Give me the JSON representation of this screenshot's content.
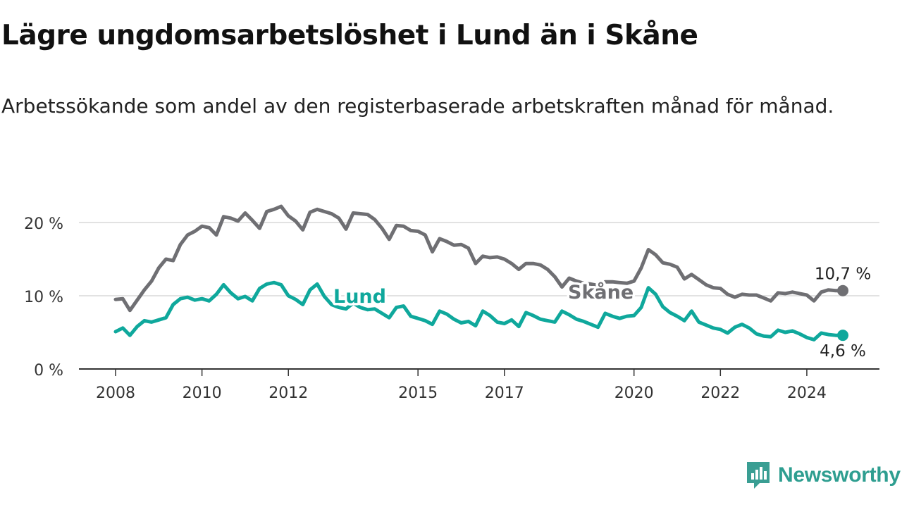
{
  "header": {
    "title": "Lägre ungdomsarbetslöshet i Lund än i Skåne",
    "subtitle": "Arbetssökande som andel av den registerbaserade arbetskraften månad för månad."
  },
  "brand": {
    "name": "Newsworthy",
    "icon": "newsworthy-logo-icon",
    "color": "#3a9e93"
  },
  "colors": {
    "lund": "#0fa89c",
    "skane": "#6f6f73",
    "axis": "#333333",
    "grid": "#d9d9d9"
  },
  "chart_data": {
    "type": "line",
    "title": "",
    "xlabel": "",
    "ylabel": "",
    "x_ticks": [
      "2008",
      "2010",
      "2012",
      "2015",
      "2017",
      "2020",
      "2022",
      "2024"
    ],
    "y_ticks": [
      "0 %",
      "10 %",
      "20 %"
    ],
    "ylim": [
      0,
      25
    ],
    "grid": true,
    "series": [
      {
        "name": "Lund",
        "color": "#0fa89c",
        "last_value_label": "4,6 %",
        "points": [
          [
            "2008-01",
            5.1
          ],
          [
            "2008-03",
            5.6
          ],
          [
            "2008-05",
            4.6
          ],
          [
            "2008-07",
            5.8
          ],
          [
            "2008-09",
            6.6
          ],
          [
            "2008-11",
            6.4
          ],
          [
            "2009-01",
            6.7
          ],
          [
            "2009-03",
            7.0
          ],
          [
            "2009-05",
            8.8
          ],
          [
            "2009-07",
            9.6
          ],
          [
            "2009-09",
            9.8
          ],
          [
            "2009-11",
            9.4
          ],
          [
            "2010-01",
            9.6
          ],
          [
            "2010-03",
            9.3
          ],
          [
            "2010-05",
            10.2
          ],
          [
            "2010-07",
            11.5
          ],
          [
            "2010-09",
            10.4
          ],
          [
            "2010-11",
            9.6
          ],
          [
            "2011-01",
            9.9
          ],
          [
            "2011-03",
            9.3
          ],
          [
            "2011-05",
            11.0
          ],
          [
            "2011-07",
            11.6
          ],
          [
            "2011-09",
            11.8
          ],
          [
            "2011-11",
            11.5
          ],
          [
            "2012-01",
            10.0
          ],
          [
            "2012-03",
            9.5
          ],
          [
            "2012-05",
            8.8
          ],
          [
            "2012-07",
            10.8
          ],
          [
            "2012-09",
            11.6
          ],
          [
            "2012-11",
            9.9
          ],
          [
            "2013-01",
            8.8
          ],
          [
            "2013-03",
            8.4
          ],
          [
            "2013-05",
            8.2
          ],
          [
            "2013-07",
            9.0
          ],
          [
            "2013-09",
            8.4
          ],
          [
            "2013-11",
            8.1
          ],
          [
            "2014-01",
            8.2
          ],
          [
            "2014-03",
            7.6
          ],
          [
            "2014-05",
            7.0
          ],
          [
            "2014-07",
            8.4
          ],
          [
            "2014-09",
            8.6
          ],
          [
            "2014-11",
            7.2
          ],
          [
            "2015-01",
            6.9
          ],
          [
            "2015-03",
            6.6
          ],
          [
            "2015-05",
            6.1
          ],
          [
            "2015-07",
            7.9
          ],
          [
            "2015-09",
            7.5
          ],
          [
            "2015-11",
            6.8
          ],
          [
            "2016-01",
            6.3
          ],
          [
            "2016-03",
            6.5
          ],
          [
            "2016-05",
            5.9
          ],
          [
            "2016-07",
            7.9
          ],
          [
            "2016-09",
            7.3
          ],
          [
            "2016-11",
            6.4
          ],
          [
            "2017-01",
            6.2
          ],
          [
            "2017-03",
            6.7
          ],
          [
            "2017-05",
            5.8
          ],
          [
            "2017-07",
            7.7
          ],
          [
            "2017-09",
            7.3
          ],
          [
            "2017-11",
            6.8
          ],
          [
            "2018-01",
            6.6
          ],
          [
            "2018-03",
            6.4
          ],
          [
            "2018-05",
            7.9
          ],
          [
            "2018-07",
            7.4
          ],
          [
            "2018-09",
            6.8
          ],
          [
            "2018-11",
            6.5
          ],
          [
            "2019-01",
            6.1
          ],
          [
            "2019-03",
            5.7
          ],
          [
            "2019-05",
            7.6
          ],
          [
            "2019-07",
            7.2
          ],
          [
            "2019-09",
            6.9
          ],
          [
            "2019-11",
            7.2
          ],
          [
            "2020-01",
            7.3
          ],
          [
            "2020-03",
            8.4
          ],
          [
            "2020-05",
            11.1
          ],
          [
            "2020-07",
            10.2
          ],
          [
            "2020-09",
            8.5
          ],
          [
            "2020-11",
            7.7
          ],
          [
            "2021-01",
            7.2
          ],
          [
            "2021-03",
            6.6
          ],
          [
            "2021-05",
            7.9
          ],
          [
            "2021-07",
            6.4
          ],
          [
            "2021-09",
            6.0
          ],
          [
            "2021-11",
            5.6
          ],
          [
            "2022-01",
            5.4
          ],
          [
            "2022-03",
            4.9
          ],
          [
            "2022-05",
            5.7
          ],
          [
            "2022-07",
            6.1
          ],
          [
            "2022-09",
            5.6
          ],
          [
            "2022-11",
            4.8
          ],
          [
            "2023-01",
            4.5
          ],
          [
            "2023-03",
            4.4
          ],
          [
            "2023-05",
            5.3
          ],
          [
            "2023-07",
            5.0
          ],
          [
            "2023-09",
            5.2
          ],
          [
            "2023-11",
            4.8
          ],
          [
            "2024-01",
            4.3
          ],
          [
            "2024-03",
            4.0
          ],
          [
            "2024-05",
            4.9
          ],
          [
            "2024-07",
            4.7
          ],
          [
            "2024-09",
            4.6
          ],
          [
            "2024-11",
            4.6
          ]
        ]
      },
      {
        "name": "Skåne",
        "color": "#6f6f73",
        "last_value_label": "10,7 %",
        "points": [
          [
            "2008-01",
            9.5
          ],
          [
            "2008-03",
            9.6
          ],
          [
            "2008-05",
            8.0
          ],
          [
            "2008-07",
            9.4
          ],
          [
            "2008-09",
            10.8
          ],
          [
            "2008-11",
            12.0
          ],
          [
            "2009-01",
            13.8
          ],
          [
            "2009-03",
            15.0
          ],
          [
            "2009-05",
            14.8
          ],
          [
            "2009-07",
            17.0
          ],
          [
            "2009-09",
            18.3
          ],
          [
            "2009-11",
            18.8
          ],
          [
            "2010-01",
            19.5
          ],
          [
            "2010-03",
            19.3
          ],
          [
            "2010-05",
            18.3
          ],
          [
            "2010-07",
            20.8
          ],
          [
            "2010-09",
            20.6
          ],
          [
            "2010-11",
            20.2
          ],
          [
            "2011-01",
            21.3
          ],
          [
            "2011-03",
            20.3
          ],
          [
            "2011-05",
            19.2
          ],
          [
            "2011-07",
            21.5
          ],
          [
            "2011-09",
            21.8
          ],
          [
            "2011-11",
            22.2
          ],
          [
            "2012-01",
            20.9
          ],
          [
            "2012-03",
            20.2
          ],
          [
            "2012-05",
            19.0
          ],
          [
            "2012-07",
            21.4
          ],
          [
            "2012-09",
            21.8
          ],
          [
            "2012-11",
            21.5
          ],
          [
            "2013-01",
            21.2
          ],
          [
            "2013-03",
            20.6
          ],
          [
            "2013-05",
            19.1
          ],
          [
            "2013-07",
            21.3
          ],
          [
            "2013-09",
            21.2
          ],
          [
            "2013-11",
            21.1
          ],
          [
            "2014-01",
            20.4
          ],
          [
            "2014-03",
            19.2
          ],
          [
            "2014-05",
            17.7
          ],
          [
            "2014-07",
            19.6
          ],
          [
            "2014-09",
            19.5
          ],
          [
            "2014-11",
            18.9
          ],
          [
            "2015-01",
            18.8
          ],
          [
            "2015-03",
            18.3
          ],
          [
            "2015-05",
            16.0
          ],
          [
            "2015-07",
            17.8
          ],
          [
            "2015-09",
            17.4
          ],
          [
            "2015-11",
            16.9
          ],
          [
            "2016-01",
            17.0
          ],
          [
            "2016-03",
            16.5
          ],
          [
            "2016-05",
            14.4
          ],
          [
            "2016-07",
            15.4
          ],
          [
            "2016-09",
            15.2
          ],
          [
            "2016-11",
            15.3
          ],
          [
            "2017-01",
            15.0
          ],
          [
            "2017-03",
            14.4
          ],
          [
            "2017-05",
            13.6
          ],
          [
            "2017-07",
            14.4
          ],
          [
            "2017-09",
            14.4
          ],
          [
            "2017-11",
            14.2
          ],
          [
            "2018-01",
            13.6
          ],
          [
            "2018-03",
            12.6
          ],
          [
            "2018-05",
            11.2
          ],
          [
            "2018-07",
            12.4
          ],
          [
            "2018-09",
            12.0
          ],
          [
            "2018-11",
            11.7
          ],
          [
            "2019-01",
            11.6
          ],
          [
            "2019-03",
            11.4
          ],
          [
            "2019-05",
            11.9
          ],
          [
            "2019-07",
            11.9
          ],
          [
            "2019-09",
            11.8
          ],
          [
            "2019-11",
            11.7
          ],
          [
            "2020-01",
            12.0
          ],
          [
            "2020-03",
            13.8
          ],
          [
            "2020-05",
            16.3
          ],
          [
            "2020-07",
            15.6
          ],
          [
            "2020-09",
            14.5
          ],
          [
            "2020-11",
            14.3
          ],
          [
            "2021-01",
            13.9
          ],
          [
            "2021-03",
            12.3
          ],
          [
            "2021-05",
            12.9
          ],
          [
            "2021-07",
            12.2
          ],
          [
            "2021-09",
            11.5
          ],
          [
            "2021-11",
            11.1
          ],
          [
            "2022-01",
            11.0
          ],
          [
            "2022-03",
            10.2
          ],
          [
            "2022-05",
            9.8
          ],
          [
            "2022-07",
            10.2
          ],
          [
            "2022-09",
            10.1
          ],
          [
            "2022-11",
            10.1
          ],
          [
            "2023-01",
            9.7
          ],
          [
            "2023-03",
            9.3
          ],
          [
            "2023-05",
            10.4
          ],
          [
            "2023-07",
            10.3
          ],
          [
            "2023-09",
            10.5
          ],
          [
            "2023-11",
            10.3
          ],
          [
            "2024-01",
            10.1
          ],
          [
            "2024-03",
            9.3
          ],
          [
            "2024-05",
            10.5
          ],
          [
            "2024-07",
            10.8
          ],
          [
            "2024-09",
            10.7
          ],
          [
            "2024-11",
            10.7
          ]
        ]
      }
    ]
  }
}
